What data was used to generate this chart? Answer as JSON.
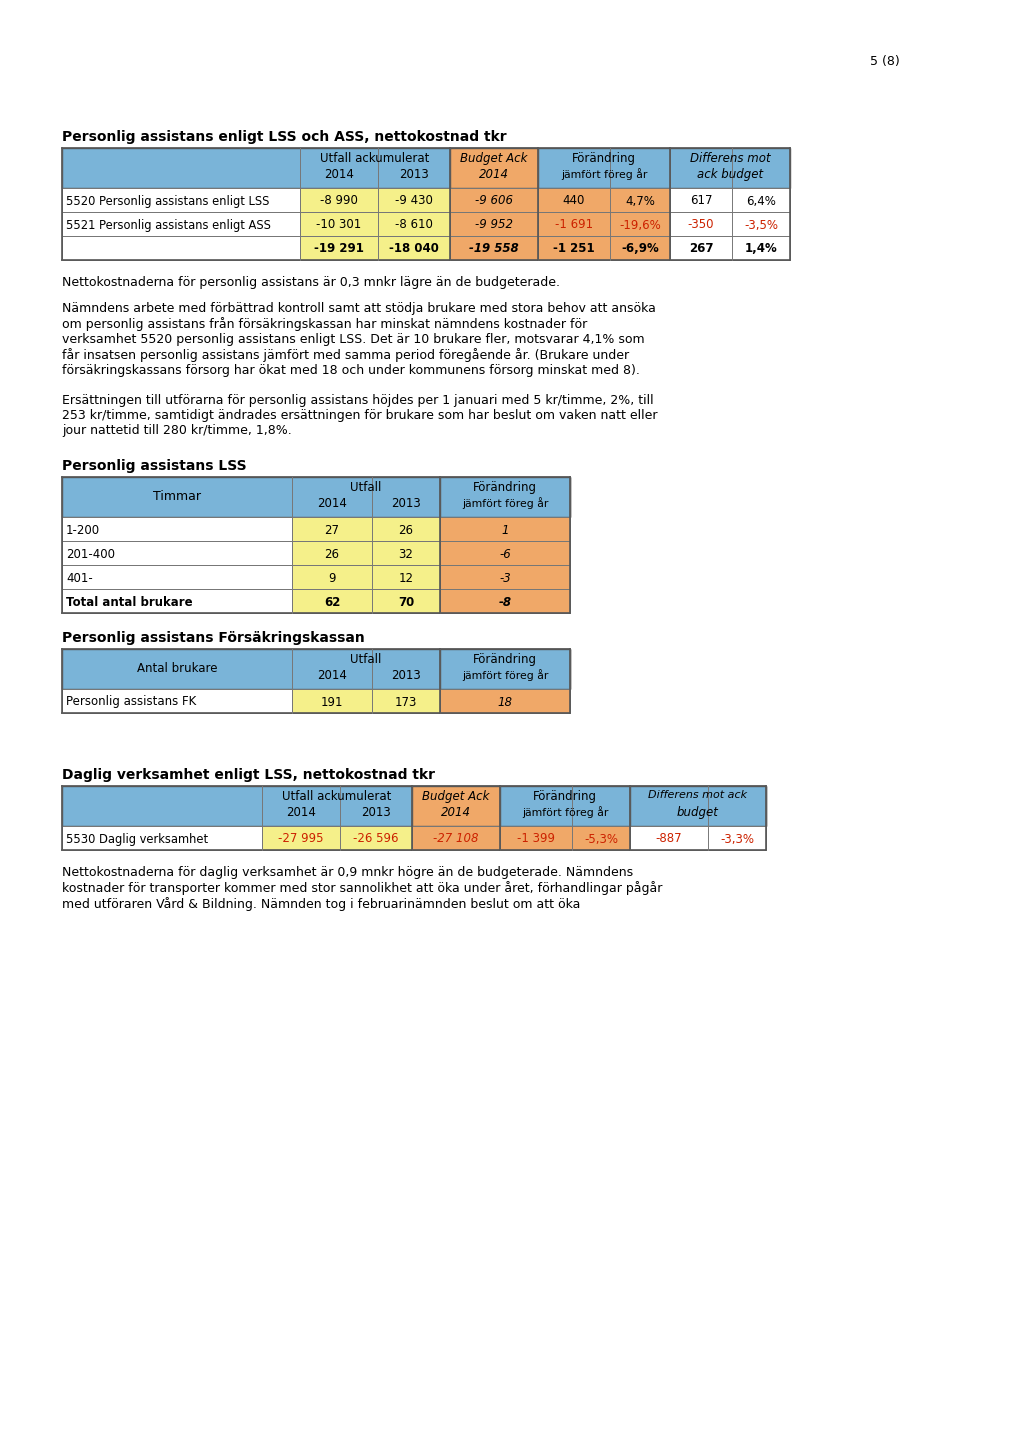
{
  "page_number": "5 (8)",
  "bg_color": "#ffffff",
  "header_bg": "#7ab4d8",
  "yellow_bg": "#f5f08a",
  "orange_bg": "#f0a868",
  "table1_title": "Personlig assistans enligt LSS och ASS, nettokostnad tkr",
  "table1_rows": [
    [
      "5520 Personlig assistans enligt LSS",
      "-8 990",
      "-9 430",
      "-9 606",
      "440",
      "4,7%",
      "617",
      "6,4%",
      false,
      false
    ],
    [
      "5521 Personlig assistans enligt ASS",
      "-10 301",
      "-8 610",
      "-9 952",
      "-1 691",
      "-19,6%",
      "-350",
      "-3,5%",
      true,
      true
    ],
    [
      "",
      "-19 291",
      "-18 040",
      "-19 558",
      "-1 251",
      "-6,9%",
      "267",
      "1,4%",
      false,
      false
    ]
  ],
  "para1": "Nettokostnaderna för personlig assistans är 0,3 mnkr lägre än de budgeterade.",
  "para2": "Nämndens arbete med förbättrad kontroll samt att stödja brukare med stora behov att ansöka\nom personlig assistans från försäkringskassan har minskat nämndens kostnader för\nverksamhet 5520 personlig assistans enligt LSS. Det är 10 brukare fler, motsvarar 4,1% som\nfår insatsen personlig assistans jämfört med samma period föregående år. (Brukare under\nförsäkringskassans försorg har ökat med 18 och under kommunens försorg minskat med 8).",
  "para3": "Ersättningen till utförarna för personlig assistans höjdes per 1 januari med 5 kr/timme, 2%, till\n253 kr/timme, samtidigt ändrades ersättningen för brukare som har beslut om vaken natt eller\njour nattetid till 280 kr/timme, 1,8%.",
  "table2_title": "Personlig assistans LSS",
  "table2_rows": [
    [
      "1-200",
      "27",
      "26",
      "1",
      false
    ],
    [
      "201-400",
      "26",
      "32",
      "-6",
      false
    ],
    [
      "401-",
      "9",
      "12",
      "-3",
      false
    ],
    [
      "Total antal brukare",
      "62",
      "70",
      "-8",
      true
    ]
  ],
  "table3_title": "Personlig assistans Försäkringskassan",
  "table3_rows": [
    [
      "Personlig assistans FK",
      "191",
      "173",
      "18"
    ]
  ],
  "table4_title": "Daglig verksamhet enligt LSS, nettokostnad tkr",
  "table4_rows": [
    [
      "5530 Daglig verksamhet",
      "-27 995",
      "-26 596",
      "-27 108",
      "-1 399",
      "-5,3%",
      "-887",
      "-3,3%"
    ]
  ],
  "para4": "Nettokostnaderna för daglig verksamhet är 0,9 mnkr högre än de budgeterade. Nämndens\nkostnader för transporter kommer med stor sannolikhet att öka under året, förhandlingar pågår\nmed utföraren Vård & Bildning. Nämnden tog i februarinämnden beslut om att öka"
}
